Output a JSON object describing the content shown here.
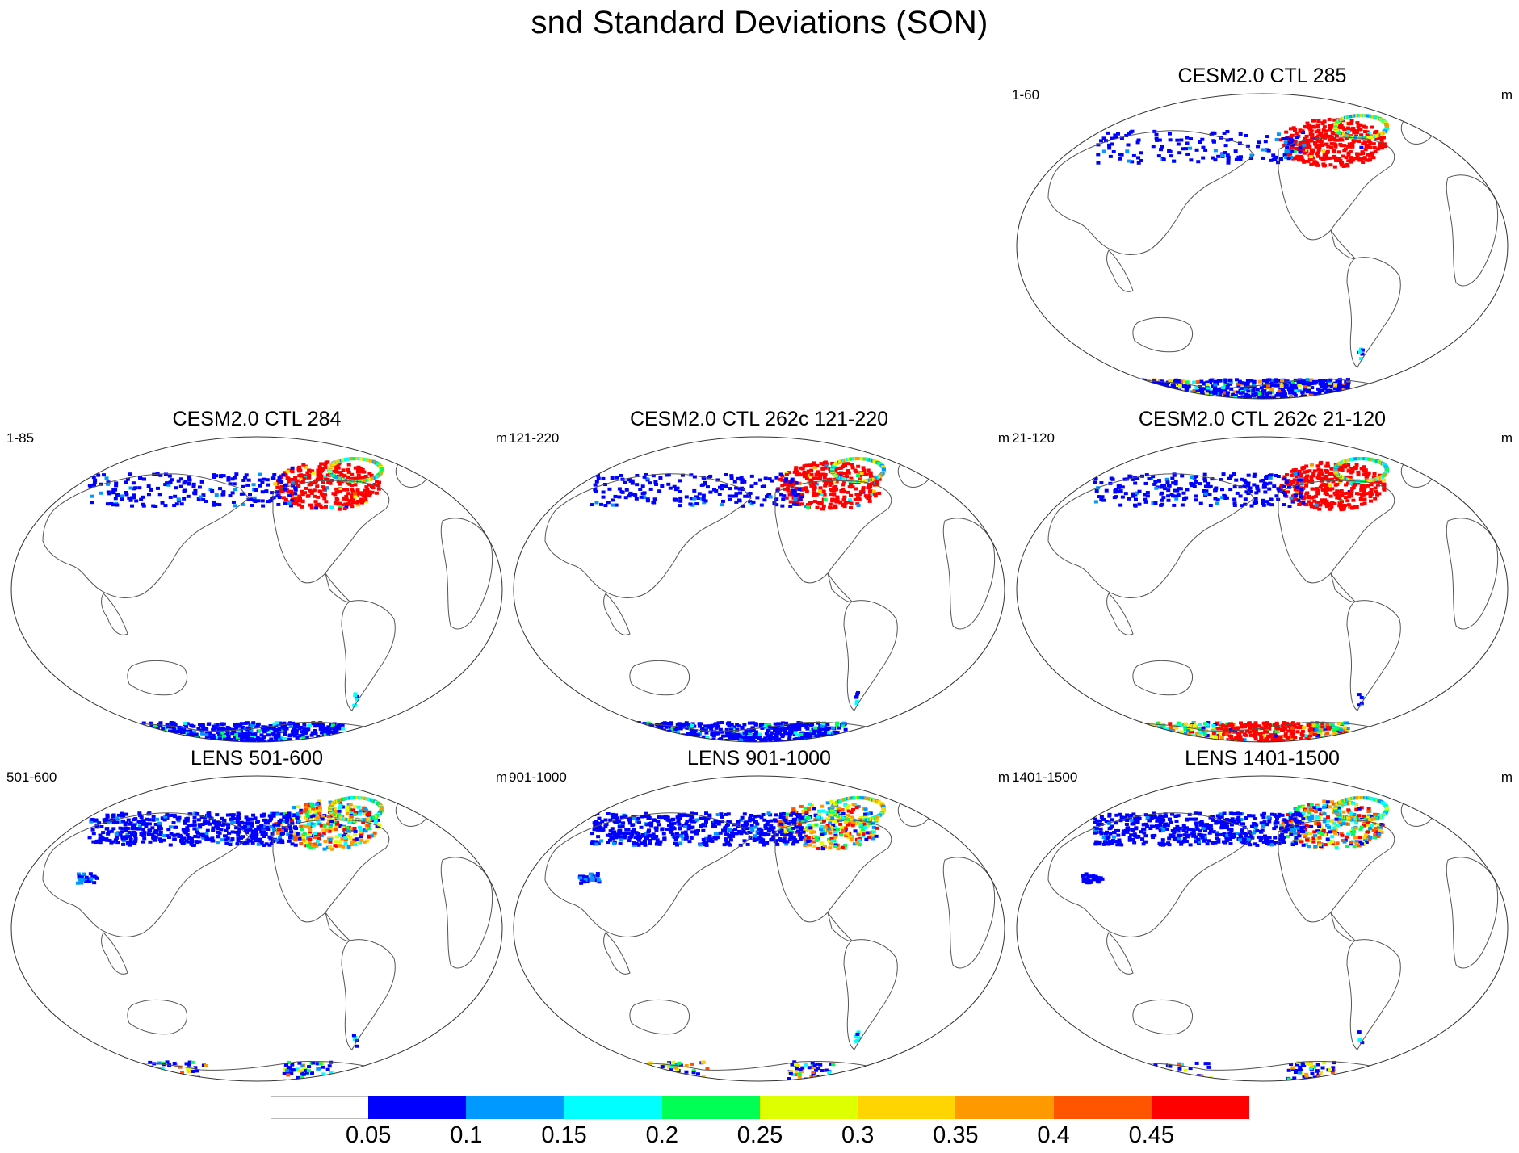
{
  "title": "snd Standard Deviations (SON)",
  "panels": [
    {
      "title": "CESM2.0 CTL 285",
      "left_label": "1-60",
      "right_label": "m",
      "intensity": {
        "canada_red": 0.95,
        "ring": true,
        "arctic_blue": 0.3,
        "antarctic": "mixed"
      }
    },
    {
      "title": "CESM2.0 CTL 284",
      "left_label": "1-85",
      "right_label": "m",
      "intensity": {
        "canada_red": 0.9,
        "ring": true,
        "arctic_blue": 0.4,
        "antarctic": "blue"
      }
    },
    {
      "title": "CESM2.0 CTL 262c 121-220",
      "left_label": "121-220",
      "right_label": "m",
      "intensity": {
        "canada_red": 0.9,
        "ring": true,
        "arctic_blue": 0.4,
        "antarctic": "blue"
      }
    },
    {
      "title": "CESM2.0 CTL 262c 21-120",
      "left_label": "21-120",
      "right_label": "m",
      "intensity": {
        "canada_red": 0.95,
        "ring": true,
        "arctic_blue": 0.5,
        "antarctic": "red"
      }
    },
    {
      "title": "LENS 501-600",
      "left_label": "501-600",
      "right_label": "m",
      "intensity": {
        "canada_red": 0.15,
        "ring": true,
        "arctic_blue": 1.0,
        "antarctic": "sparse"
      }
    },
    {
      "title": "LENS 901-1000",
      "left_label": "901-1000",
      "right_label": "m",
      "intensity": {
        "canada_red": 0.15,
        "ring": true,
        "arctic_blue": 1.0,
        "antarctic": "sparse"
      }
    },
    {
      "title": "LENS 1401-1500",
      "left_label": "1401-1500",
      "right_label": "m",
      "intensity": {
        "canada_red": 0.15,
        "ring": true,
        "arctic_blue": 1.0,
        "antarctic": "sparse"
      }
    }
  ],
  "colorbar": {
    "colors": [
      "#ffffff",
      "#0000ff",
      "#0099ff",
      "#00ffff",
      "#00ff55",
      "#ddff00",
      "#ffd500",
      "#ff9900",
      "#ff5500",
      "#ff0000"
    ],
    "labels": [
      "0.05",
      "0.1",
      "0.15",
      "0.2",
      "0.25",
      "0.3",
      "0.35",
      "0.4",
      "0.45"
    ]
  }
}
